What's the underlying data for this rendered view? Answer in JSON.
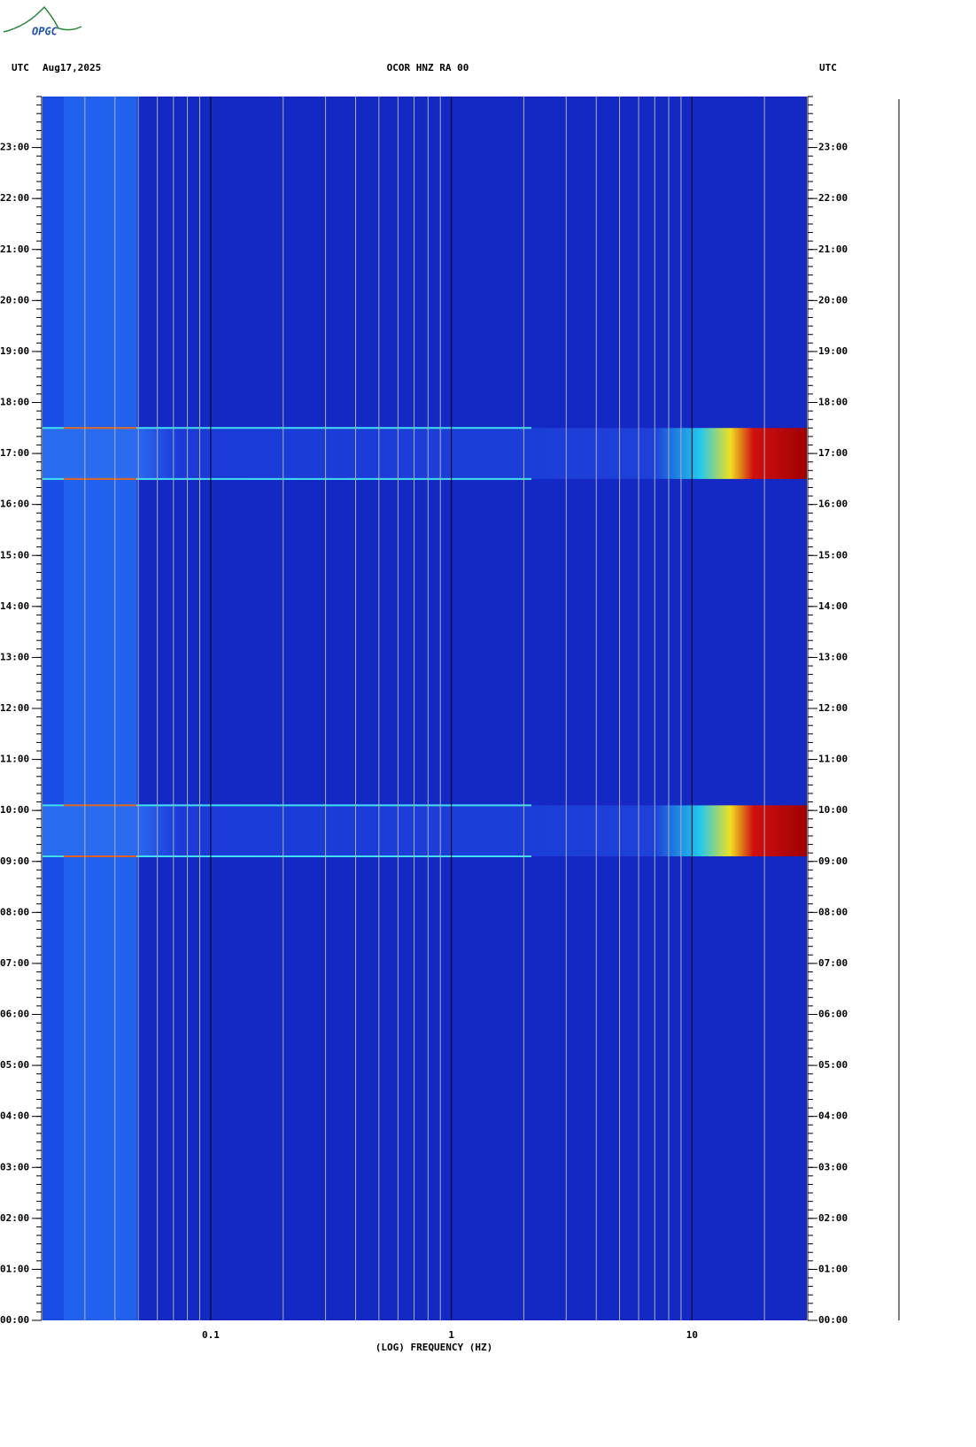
{
  "logo": "OPGC",
  "chart_data": {
    "type": "spectrogram",
    "title": "OCOR HNZ RA 00",
    "date": "Aug17,2025",
    "left_label": "UTC",
    "right_label": "UTC",
    "xlabel": "(LOG) FREQUENCY (HZ)",
    "xscale": "log",
    "xlim": [
      0.02,
      30
    ],
    "xticks": [
      {
        "value": 0.1,
        "label": "0.1"
      },
      1,
      10
    ],
    "x_grid": [
      0.03,
      0.04,
      0.05,
      0.06,
      0.07,
      0.08,
      0.09,
      0.2,
      0.3,
      0.4,
      0.5,
      0.6,
      0.7,
      0.8,
      0.9,
      2,
      3,
      4,
      5,
      6,
      7,
      8,
      9,
      20
    ],
    "ylim": [
      0,
      24
    ],
    "yticks": [
      {
        "value": 0,
        "label": "00:00"
      },
      {
        "value": 1,
        "label": "01:00"
      },
      {
        "value": 2,
        "label": "02:00"
      },
      {
        "value": 3,
        "label": "03:00"
      },
      {
        "value": 4,
        "label": "04:00"
      },
      {
        "value": 5,
        "label": "05:00"
      },
      {
        "value": 6,
        "label": "06:00"
      },
      {
        "value": 7,
        "label": "07:00"
      },
      {
        "value": 8,
        "label": "08:00"
      },
      {
        "value": 9,
        "label": "09:00"
      },
      {
        "value": 10,
        "label": "10:00"
      },
      {
        "value": 11,
        "label": "11:00"
      },
      {
        "value": 12,
        "label": "12:00"
      },
      {
        "value": 13,
        "label": "13:00"
      },
      {
        "value": 14,
        "label": "14:00"
      },
      {
        "value": 15,
        "label": "15:00"
      },
      {
        "value": 16,
        "label": "16:00"
      },
      {
        "value": 17,
        "label": "17:00"
      },
      {
        "value": 18,
        "label": "18:00"
      },
      {
        "value": 19,
        "label": "19:00"
      },
      {
        "value": 20,
        "label": "20:00"
      },
      {
        "value": 21,
        "label": "21:00"
      },
      {
        "value": 22,
        "label": "22:00"
      },
      {
        "value": 23,
        "label": "23:00"
      }
    ],
    "events": [
      {
        "start": 9.1,
        "end": 10.1
      },
      {
        "start": 16.5,
        "end": 17.5
      }
    ]
  }
}
